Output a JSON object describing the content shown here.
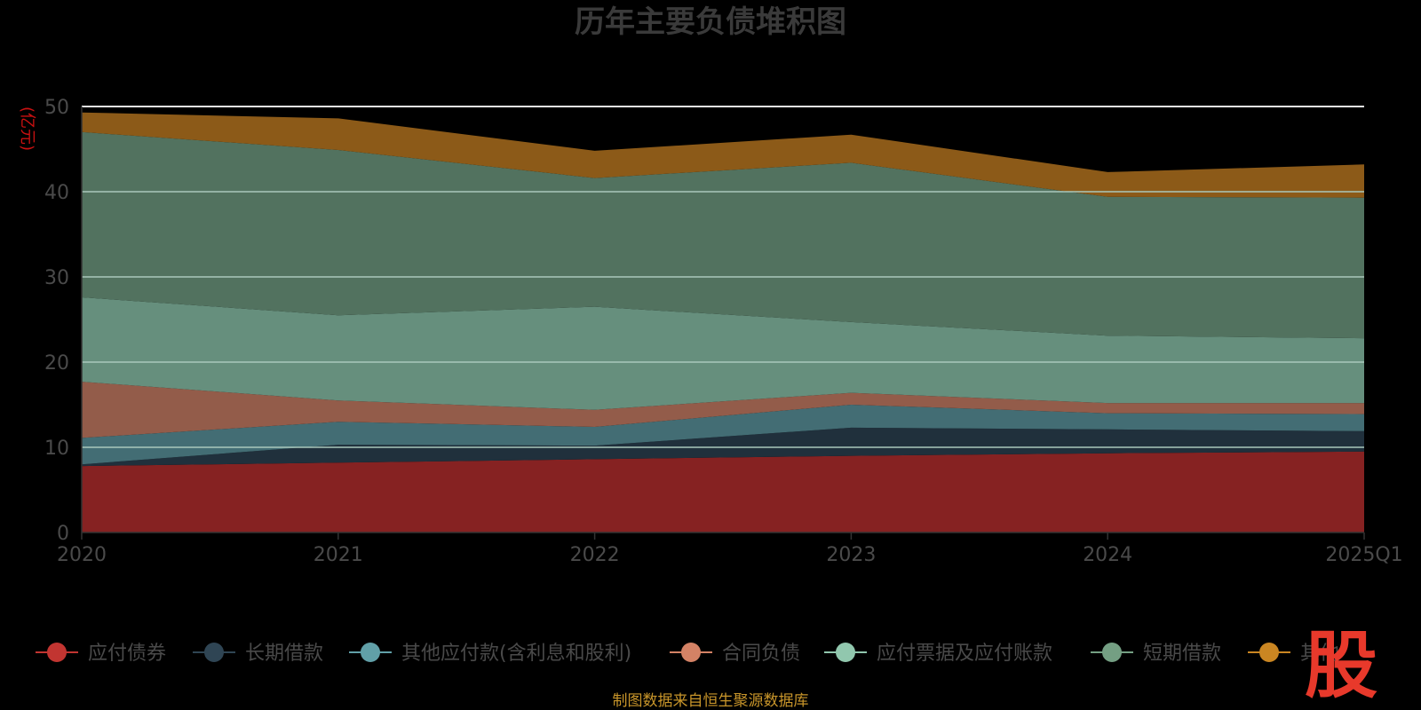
{
  "chart_data": {
    "type": "area",
    "stacked": true,
    "title": "历年主要负债堆积图",
    "ylabel": "亿元",
    "ylim": [
      0,
      50
    ],
    "yticks": [
      0,
      10,
      20,
      30,
      40,
      50
    ],
    "categories": [
      "2020",
      "2021",
      "2022",
      "2023",
      "2024",
      "2025Q1"
    ],
    "series": [
      {
        "name": "应付债券",
        "color": "#862222",
        "legend_color": "#c23531",
        "values": [
          7.8,
          8.2,
          8.6,
          9.0,
          9.3,
          9.5
        ]
      },
      {
        "name": "长期借款",
        "color": "#20303c",
        "legend_color": "#2f4554",
        "values": [
          0.2,
          2.1,
          1.6,
          3.3,
          2.8,
          2.4
        ]
      },
      {
        "name": "其他应付款(含利息和股利)",
        "color": "#436d74",
        "legend_color": "#61a0a8",
        "values": [
          3.1,
          2.7,
          2.2,
          2.7,
          1.9,
          2.0
        ]
      },
      {
        "name": "合同负债",
        "color": "#935c4a",
        "legend_color": "#d48265",
        "values": [
          6.6,
          2.5,
          2.0,
          1.4,
          1.2,
          1.3
        ]
      },
      {
        "name": "应付票据及应付账款",
        "color": "#668f7d",
        "legend_color": "#91c7ae",
        "values": [
          9.9,
          10.0,
          12.1,
          8.3,
          7.9,
          7.6
        ]
      },
      {
        "name": "短期借款",
        "color": "#52725f",
        "legend_color": "#749f83",
        "values": [
          19.4,
          19.4,
          15.1,
          18.7,
          16.3,
          16.5
        ]
      },
      {
        "name": "其他",
        "color": "#8c5a18",
        "legend_color": "#ca8622",
        "values": [
          2.3,
          3.7,
          3.2,
          3.3,
          2.9,
          3.9
        ]
      }
    ],
    "legend_position": "bottom"
  },
  "source_note": "制图数据来自恒生聚源数据库",
  "logo_text": "股",
  "ylabel_display": "(亿元)"
}
